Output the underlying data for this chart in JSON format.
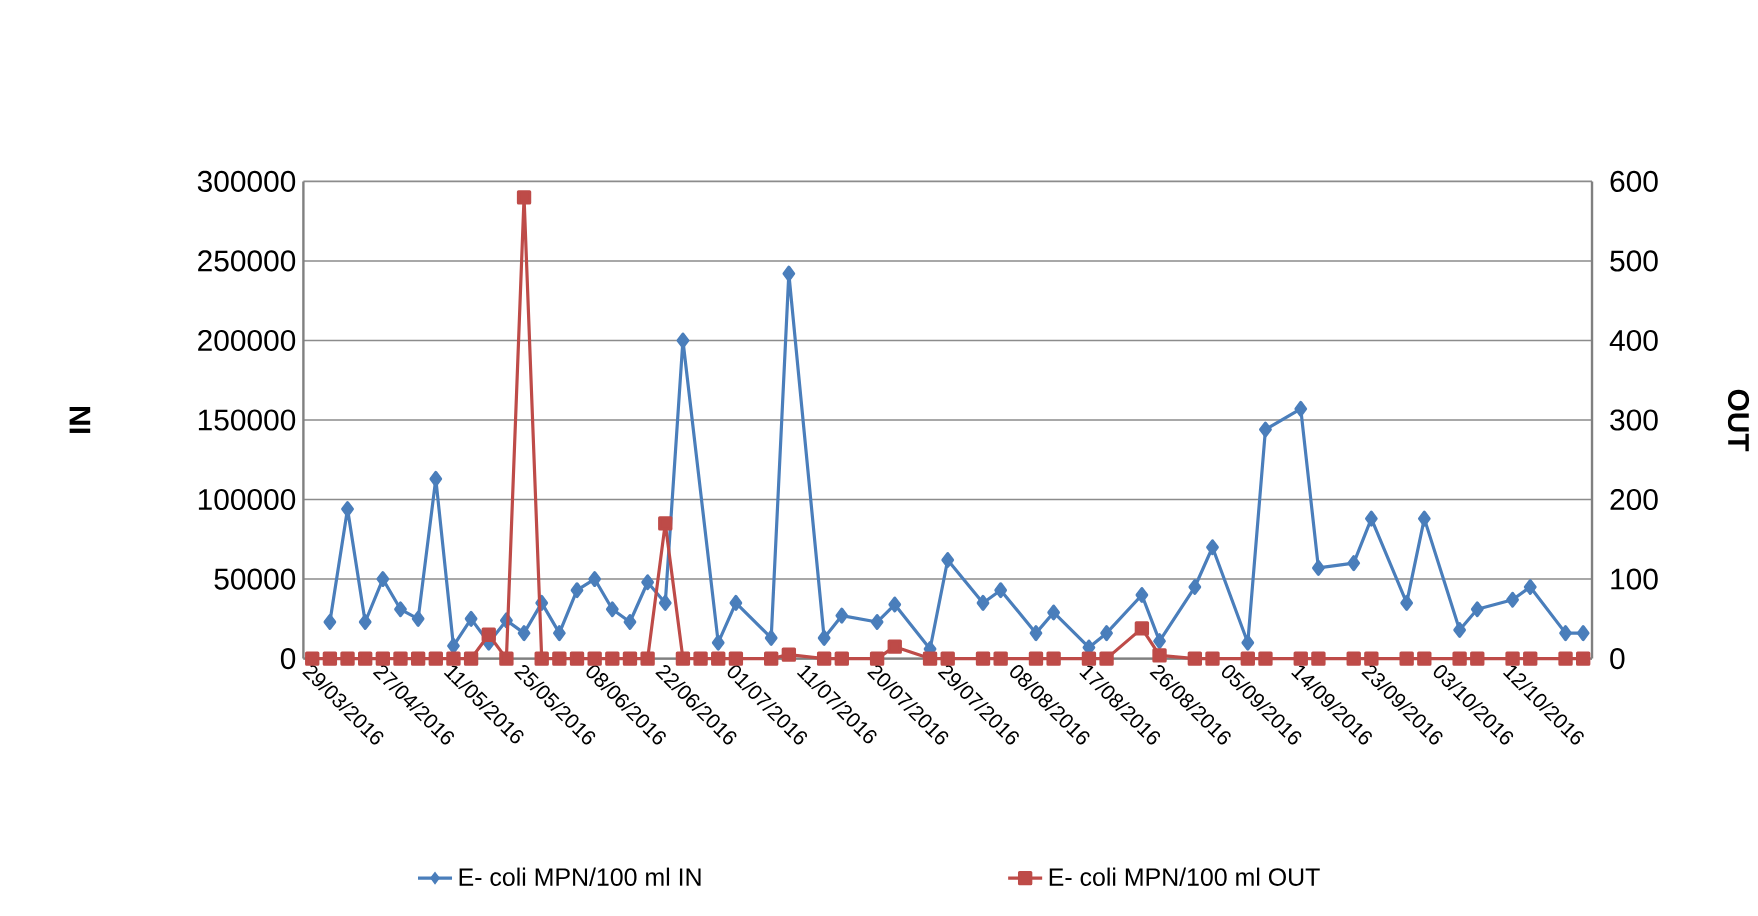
{
  "chart_data": {
    "type": "line",
    "ylabel": "IN",
    "y2label": "OUT",
    "categories": [
      "29/03/2016",
      null,
      null,
      null,
      "27/04/2016",
      null,
      null,
      null,
      "11/05/2016",
      null,
      null,
      null,
      "25/05/2016",
      null,
      null,
      null,
      "08/06/2016",
      null,
      null,
      null,
      "22/06/2016",
      null,
      null,
      null,
      "01/07/2016",
      null,
      null,
      null,
      "11/07/2016",
      null,
      null,
      null,
      "20/07/2016",
      null,
      null,
      null,
      "29/07/2016",
      null,
      null,
      null,
      "08/08/2016",
      null,
      null,
      null,
      "17/08/2016",
      null,
      null,
      null,
      "26/08/2016",
      null,
      null,
      null,
      "05/09/2016",
      null,
      null,
      null,
      "14/09/2016",
      null,
      null,
      null,
      "23/09/2016",
      null,
      null,
      null,
      "03/10/2016",
      null,
      null,
      null,
      "12/10/2016",
      null,
      null,
      null,
      null
    ],
    "series": [
      {
        "name": "E- coli MPN/100 ml IN",
        "color": "#4a7ebb",
        "marker": "diamond",
        "values": [
          null,
          23000,
          94000,
          23000,
          50000,
          31000,
          25000,
          113000,
          8000,
          25000,
          10000,
          24000,
          16000,
          35000,
          16000,
          43000,
          50000,
          31000,
          23000,
          48000,
          35000,
          200000,
          null,
          10000,
          35000,
          null,
          13000,
          242000,
          null,
          13000,
          27000,
          null,
          23000,
          34000,
          null,
          6000,
          62000,
          null,
          35000,
          43000,
          null,
          16000,
          29000,
          null,
          7000,
          16000,
          null,
          40000,
          11000,
          null,
          45000,
          70000,
          null,
          10000,
          144000,
          null,
          157000,
          57000,
          null,
          60000,
          88000,
          null,
          35000,
          88000,
          null,
          18000,
          31000,
          null,
          37000,
          45000,
          null,
          16000,
          16000
        ]
      },
      {
        "name": "E- coli MPN/100 ml OUT",
        "color": "#be4b48",
        "marker": "square",
        "axis": "y2",
        "values": [
          0,
          0,
          0,
          0,
          0,
          0,
          0,
          0,
          0,
          0,
          30,
          0,
          580,
          0,
          0,
          0,
          0,
          0,
          0,
          0,
          170,
          0,
          0,
          0,
          0,
          null,
          0,
          5,
          null,
          0,
          0,
          null,
          0,
          15,
          null,
          0,
          0,
          null,
          0,
          0,
          null,
          0,
          0,
          null,
          0,
          0,
          null,
          38,
          4,
          null,
          0,
          0,
          null,
          0,
          0,
          null,
          0,
          0,
          null,
          0,
          0,
          null,
          0,
          0,
          null,
          0,
          0,
          null,
          0,
          0,
          null,
          0,
          0
        ]
      }
    ],
    "ylim": [
      0,
      300000
    ],
    "yticks": [
      0,
      50000,
      100000,
      150000,
      200000,
      250000,
      300000
    ],
    "y2lim": [
      0,
      600
    ],
    "y2ticks": [
      0,
      100,
      200,
      300,
      400,
      500,
      600
    ],
    "grid": "y",
    "legend": "bottom"
  }
}
